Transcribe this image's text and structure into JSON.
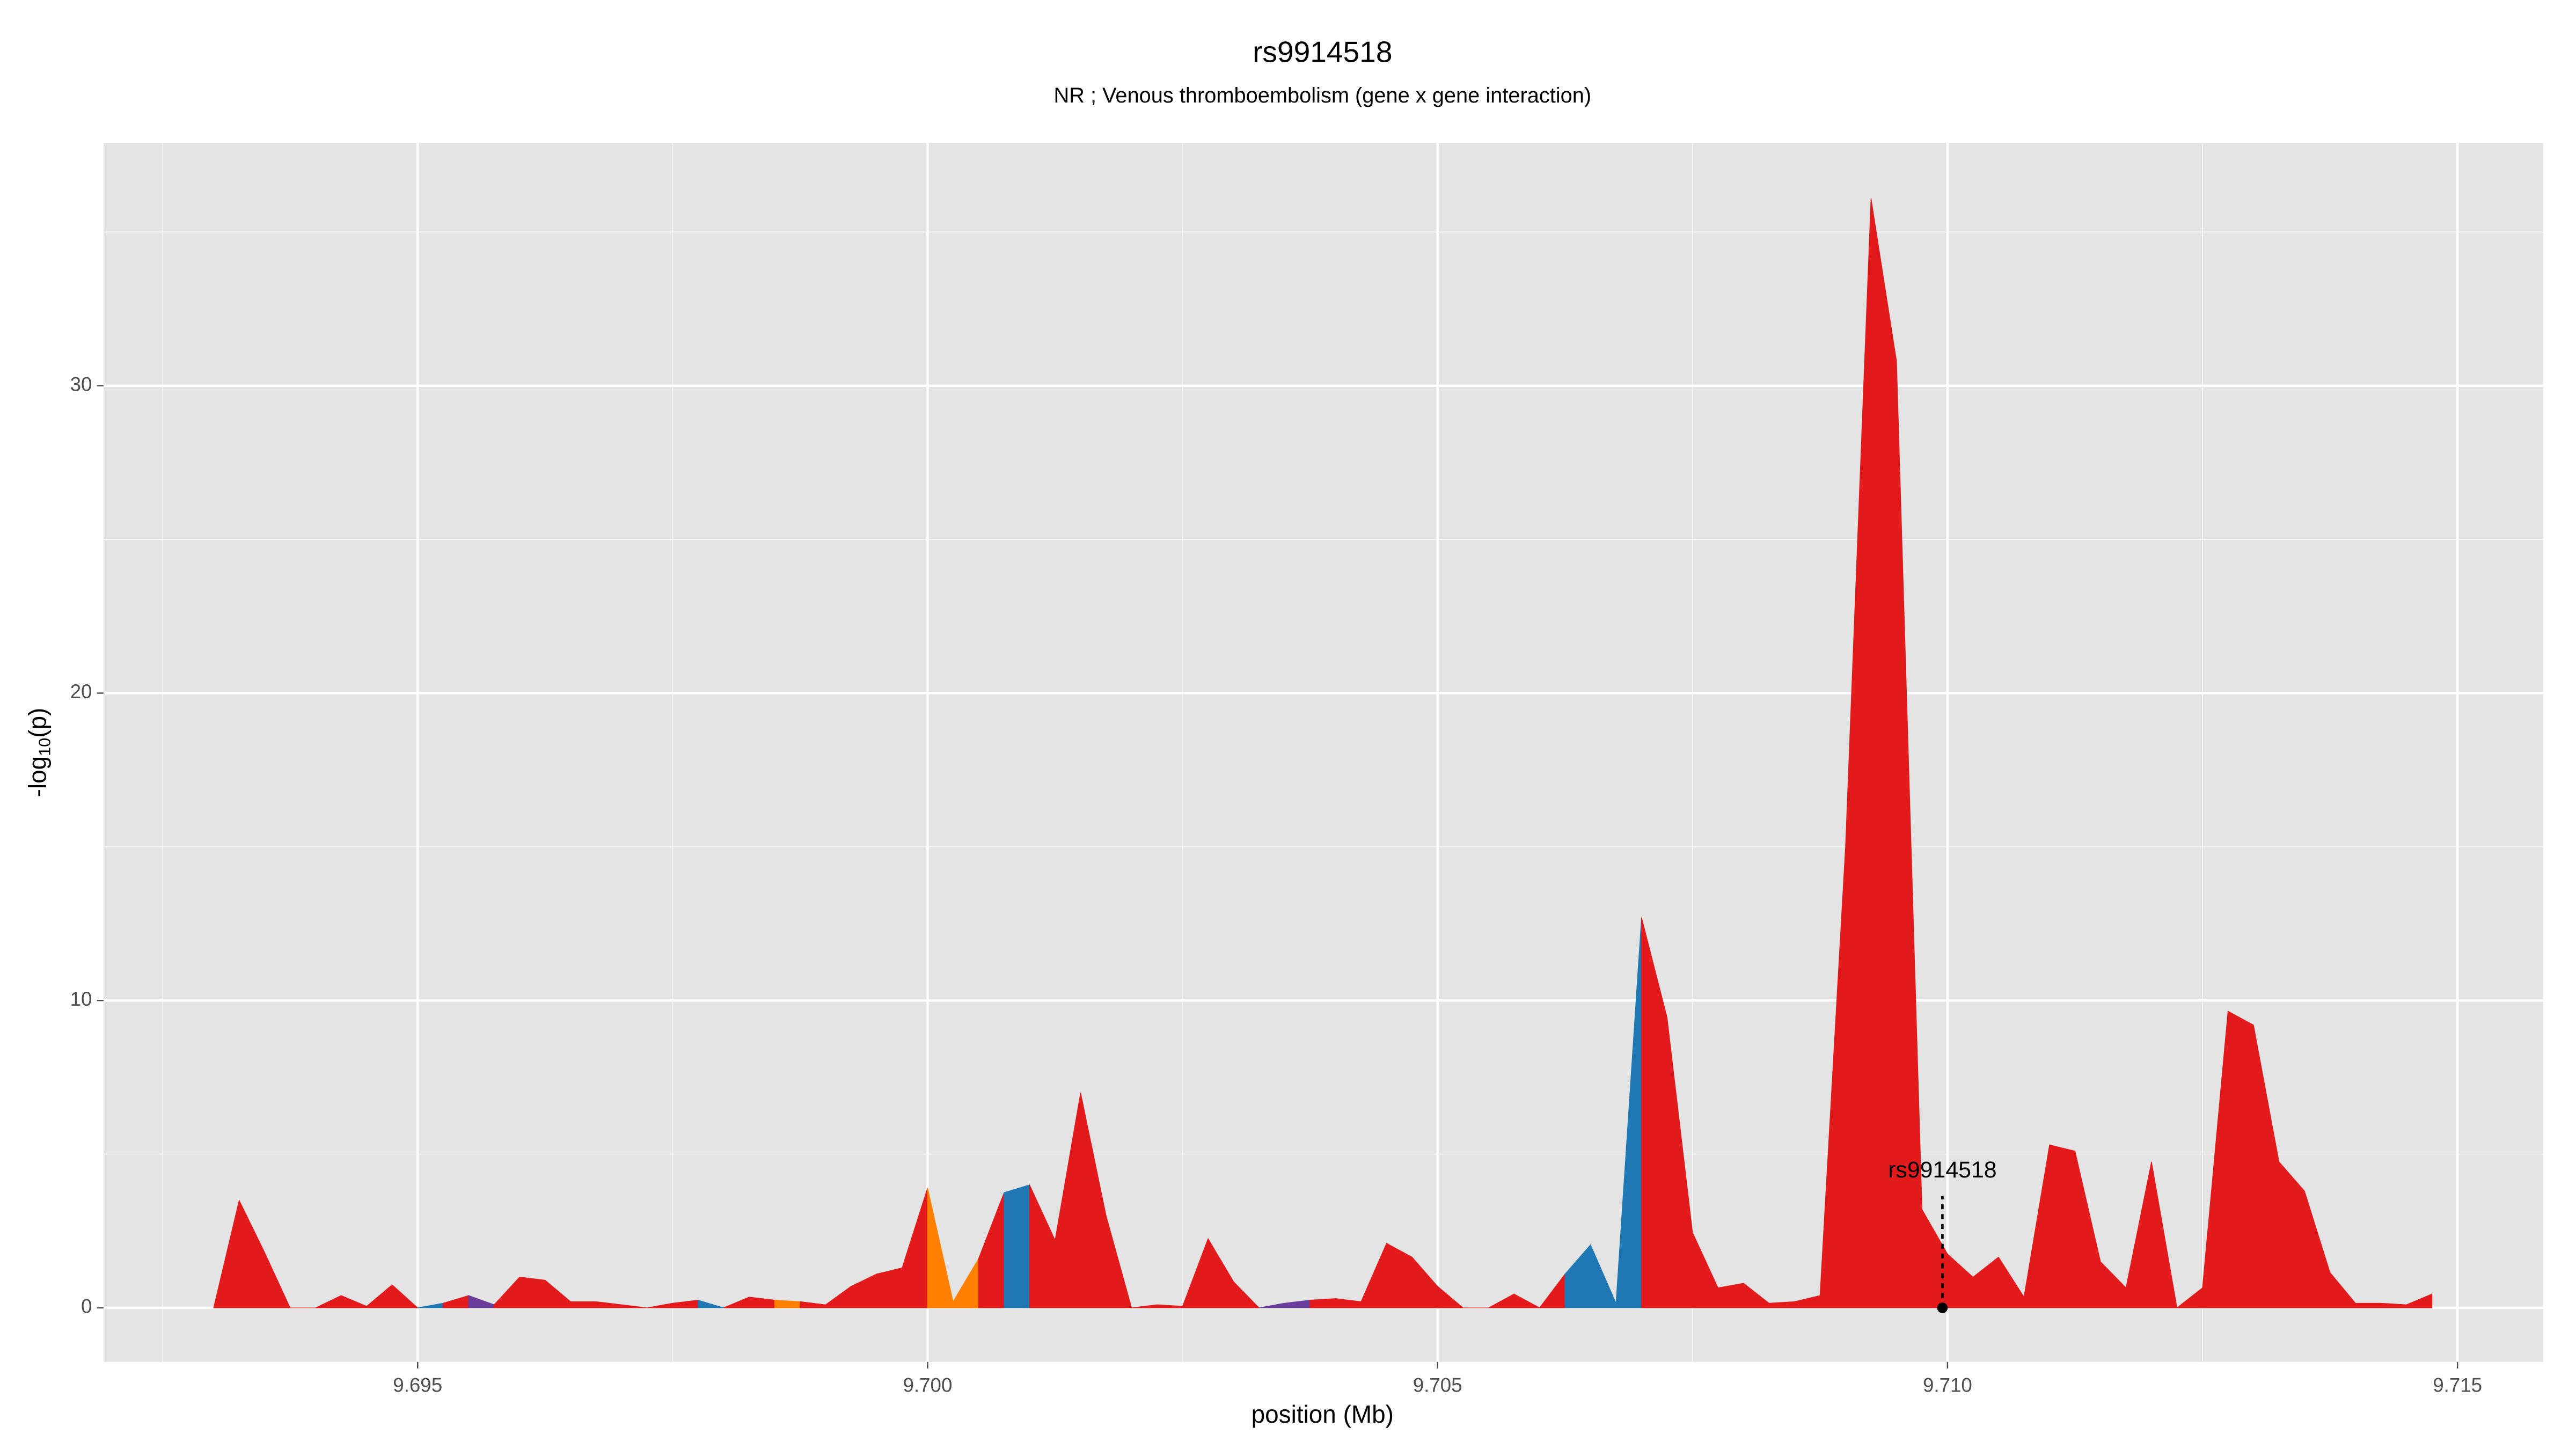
{
  "chart_data": {
    "type": "area",
    "title": "rs9914518",
    "subtitle": "NR ; Venous thromboembolism (gene x gene interaction)",
    "xlabel": "position (Mb)",
    "y_label_parts": [
      "-log",
      "10",
      "(p)"
    ],
    "xlim": [
      9.69192,
      9.71584
    ],
    "ylim": [
      -1.76,
      37.9
    ],
    "xticks": [
      9.695,
      {
        "value": 9.7,
        "label": "9.700"
      },
      9.705,
      {
        "value": 9.71,
        "label": "9.710"
      },
      9.715
    ],
    "yticks": [
      0,
      10,
      20,
      30
    ],
    "grid": true,
    "background": "#e4e4e4",
    "series": [
      {
        "color": "#e31a1c",
        "x": [
          9.693,
          9.69325,
          9.6935,
          9.69375,
          9.694,
          9.69425,
          9.6945,
          9.69475,
          9.695
        ],
        "values": [
          0,
          3.5,
          1.8,
          0,
          0,
          0.4,
          0.05,
          0.75,
          0
        ]
      },
      {
        "color": "#1f78b4",
        "x": [
          9.695,
          9.69525
        ],
        "values": [
          0,
          0.15
        ]
      },
      {
        "color": "#e31a1c",
        "x": [
          9.69525,
          9.6955
        ],
        "values": [
          0.15,
          0.4
        ]
      },
      {
        "color": "#6a3d9a",
        "x": [
          9.6955,
          9.69575
        ],
        "values": [
          0.4,
          0.1
        ]
      },
      {
        "color": "#e31a1c",
        "x": [
          9.69575,
          9.696,
          9.69625,
          9.6965,
          9.69675,
          9.697,
          9.69725,
          9.6975,
          9.69775
        ],
        "values": [
          0.1,
          1.0,
          0.9,
          0.2,
          0.2,
          0.1,
          0,
          0.15,
          0.25
        ]
      },
      {
        "color": "#1f78b4",
        "x": [
          9.69775,
          9.698
        ],
        "values": [
          0.25,
          0
        ]
      },
      {
        "color": "#e31a1c",
        "x": [
          9.698,
          9.69825,
          9.6985
        ],
        "values": [
          0,
          0.35,
          0.25
        ]
      },
      {
        "color": "#ff7f00",
        "x": [
          9.6985,
          9.69875
        ],
        "values": [
          0.25,
          0.2
        ]
      },
      {
        "color": "#e31a1c",
        "x": [
          9.69875,
          9.699,
          9.69925,
          9.6995,
          9.69975,
          9.7
        ],
        "values": [
          0.2,
          0.1,
          0.7,
          1.1,
          1.3,
          3.9
        ]
      },
      {
        "color": "#ff7f00",
        "x": [
          9.7,
          9.70025,
          9.7005
        ],
        "values": [
          3.9,
          0.2,
          1.6
        ]
      },
      {
        "color": "#e31a1c",
        "x": [
          9.7005,
          9.70075
        ],
        "values": [
          1.6,
          3.75
        ]
      },
      {
        "color": "#1f78b4",
        "x": [
          9.70075,
          9.701
        ],
        "values": [
          3.75,
          4.0
        ]
      },
      {
        "color": "#e31a1c",
        "x": [
          9.701,
          9.70125,
          9.7015,
          9.70175,
          9.702,
          9.70225,
          9.7025,
          9.70275,
          9.703,
          9.70325
        ],
        "values": [
          4.0,
          2.2,
          7.0,
          3.0,
          0,
          0.1,
          0.05,
          2.25,
          0.85,
          0
        ]
      },
      {
        "color": "#6a3d9a",
        "x": [
          9.70325,
          9.7035,
          9.70375
        ],
        "values": [
          0,
          0.15,
          0.25
        ]
      },
      {
        "color": "#e31a1c",
        "x": [
          9.70375,
          9.704,
          9.70425,
          9.7045,
          9.70475,
          9.705,
          9.70525,
          9.7055,
          9.70575,
          9.706,
          9.70625
        ],
        "values": [
          0.25,
          0.3,
          0.2,
          2.1,
          1.65,
          0.7,
          0,
          0,
          0.45,
          0,
          1.1
        ]
      },
      {
        "color": "#1f78b4",
        "x": [
          9.70625,
          9.7065,
          9.70675,
          9.707
        ],
        "values": [
          1.1,
          2.05,
          0.15,
          12.7
        ]
      },
      {
        "color": "#e31a1c",
        "x": [
          9.707,
          9.70725,
          9.7075,
          9.70775,
          9.708,
          9.70825,
          9.7085,
          9.70875,
          9.709,
          9.70925,
          9.7095,
          9.70975,
          9.71,
          9.71025,
          9.7105,
          9.71075,
          9.711,
          9.71125,
          9.7115,
          9.71175,
          9.712,
          9.71225,
          9.7125,
          9.71275,
          9.713,
          9.71325,
          9.7135,
          9.71375,
          9.714,
          9.71425,
          9.7145,
          9.71475
        ],
        "values": [
          12.7,
          9.45,
          2.45,
          0.65,
          0.8,
          0.15,
          0.2,
          0.4,
          15,
          36.1,
          30.8,
          3.2,
          1.75,
          1.0,
          1.65,
          0.35,
          5.3,
          5.1,
          1.5,
          0.65,
          4.75,
          0,
          0.65,
          9.65,
          9.2,
          4.75,
          3.8,
          1.15,
          0.15,
          0.15,
          0.1,
          0.45
        ]
      }
    ],
    "annotation": {
      "label": "rs9914518",
      "x": 9.70995,
      "y": 0
    }
  }
}
